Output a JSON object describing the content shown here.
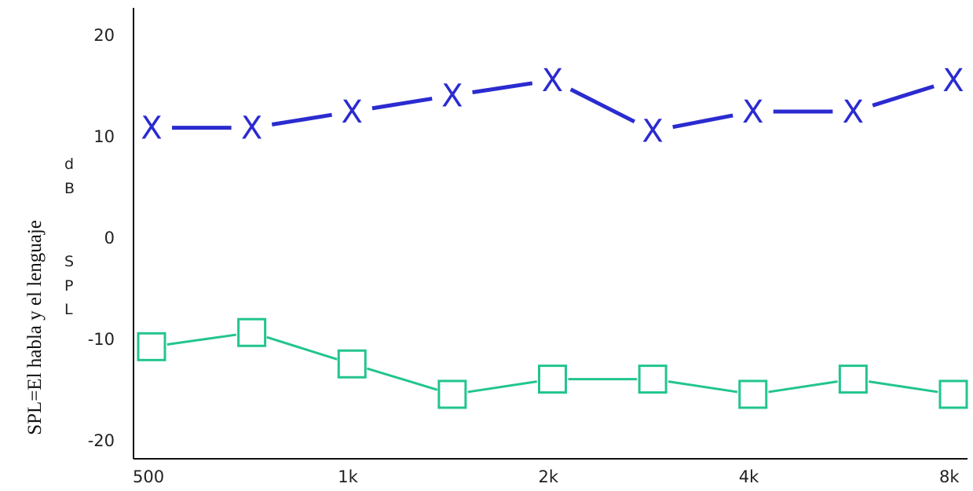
{
  "side_caption": "SPL=El habla y el lenguaje",
  "chart_data": {
    "type": "line",
    "ylabel_letters": [
      "d",
      "B",
      "S",
      "P",
      "L"
    ],
    "ylim": [
      -23,
      23
    ],
    "yticks": [
      20,
      10,
      0,
      -10,
      -20
    ],
    "x_tick_labels": [
      "500",
      "1k",
      "2k",
      "4k",
      "8k"
    ],
    "grid": false,
    "legend": "none",
    "series": [
      {
        "marker": "X",
        "color": "#2b2bd0",
        "values": [
          10.8,
          10.8,
          12.4,
          14.0,
          15.5,
          10.5,
          12.4,
          12.4,
          15.5
        ]
      },
      {
        "marker": "square",
        "color": "#22c58c",
        "values": [
          -10.8,
          -9.4,
          -12.5,
          -15.5,
          -14.0,
          -14.0,
          -15.5,
          -14.0,
          -15.5
        ]
      }
    ]
  }
}
